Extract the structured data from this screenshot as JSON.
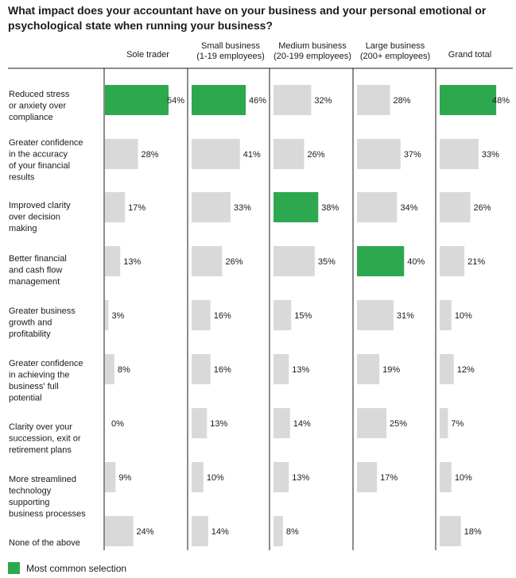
{
  "title": "What impact does your accountant have on your business and your personal emotional or psychological state when running your business?",
  "legend": {
    "label": "Most common selection",
    "color": "#2ea84f"
  },
  "colors": {
    "highlight": "#2ea84f",
    "normal": "#d9d9d9",
    "divider": "#1a1a1a"
  },
  "chart_data": {
    "type": "bar",
    "title": "What impact does your accountant have on your business and your personal emotional or psychological state when running your business?",
    "columns": [
      {
        "name": "Sole trader",
        "sub": ""
      },
      {
        "name": "Small business",
        "sub": "(1-19 employees)"
      },
      {
        "name": "Medium business",
        "sub": "(20-199 employees)"
      },
      {
        "name": "Large business",
        "sub": "(200+ employees)"
      },
      {
        "name": "Grand total",
        "sub": ""
      }
    ],
    "categories": [
      {
        "lines": [
          "Reduced stress",
          "or anxiety over",
          "compliance"
        ]
      },
      {
        "lines": [
          "Greater confidence",
          "in the accuracy",
          "of your financial",
          "results"
        ]
      },
      {
        "lines": [
          "Improved clarity",
          "over decision",
          "making"
        ]
      },
      {
        "lines": [
          "Better financial",
          "and cash flow",
          "management"
        ]
      },
      {
        "lines": [
          "Greater business",
          "growth and",
          "profitability"
        ]
      },
      {
        "lines": [
          "Greater confidence",
          "in achieving the",
          "business' full",
          "potential"
        ]
      },
      {
        "lines": [
          "Clarity over your",
          "succession, exit or",
          "retirement plans"
        ]
      },
      {
        "lines": [
          "More streamlined",
          "technology",
          "supporting",
          "business processes"
        ]
      },
      {
        "lines": [
          "None of the above"
        ]
      }
    ],
    "series": [
      {
        "name": "Sole trader",
        "values": [
          54,
          28,
          17,
          13,
          3,
          8,
          0,
          9,
          24
        ]
      },
      {
        "name": "Small business",
        "values": [
          46,
          41,
          33,
          26,
          16,
          16,
          13,
          10,
          14
        ]
      },
      {
        "name": "Medium business",
        "values": [
          32,
          26,
          38,
          35,
          15,
          13,
          14,
          13,
          8
        ]
      },
      {
        "name": "Large business",
        "values": [
          28,
          37,
          34,
          40,
          31,
          19,
          25,
          17,
          0
        ]
      },
      {
        "name": "Grand total",
        "values": [
          48,
          33,
          26,
          21,
          10,
          12,
          7,
          10,
          18
        ]
      }
    ],
    "value_labels": [
      [
        "54%",
        "28%",
        "17%",
        "13%",
        "3%",
        "8%",
        "0%",
        "9%",
        "24%"
      ],
      [
        "46%",
        "41%",
        "33%",
        "26%",
        "16%",
        "16%",
        "13%",
        "10%",
        "14%"
      ],
      [
        "32%",
        "26%",
        "38%",
        "35%",
        "15%",
        "13%",
        "14%",
        "13%",
        "8%"
      ],
      [
        "28%",
        "37%",
        "34%",
        "40%",
        "31%",
        "19%",
        "25%",
        "17%",
        ""
      ],
      [
        "48%",
        "33%",
        "26%",
        "21%",
        "10%",
        "12%",
        "7%",
        "10%",
        "18%"
      ]
    ],
    "highlighted": [
      [
        true,
        false,
        false,
        false,
        false,
        false,
        false,
        false,
        false
      ],
      [
        true,
        false,
        false,
        false,
        false,
        false,
        false,
        false,
        false
      ],
      [
        false,
        false,
        true,
        false,
        false,
        false,
        false,
        false,
        false
      ],
      [
        false,
        false,
        false,
        true,
        false,
        false,
        false,
        false,
        false
      ],
      [
        true,
        false,
        false,
        false,
        false,
        false,
        false,
        false,
        false
      ]
    ],
    "xlim": [
      0,
      54
    ]
  }
}
